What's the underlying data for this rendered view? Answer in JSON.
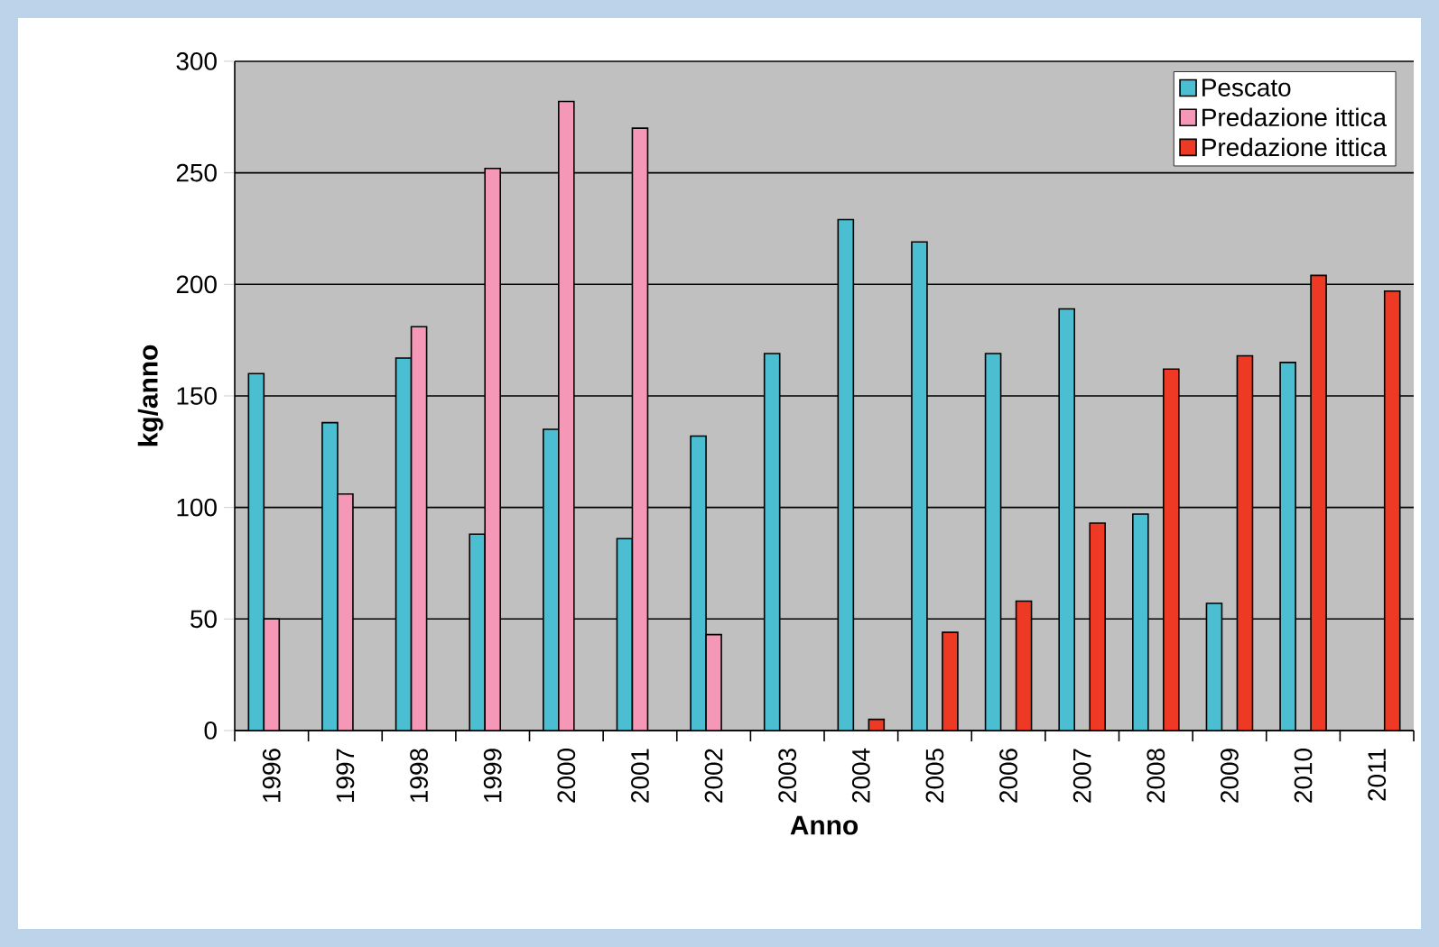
{
  "chart_data": {
    "type": "bar",
    "xlabel": "Anno",
    "ylabel": "kg/anno",
    "categories": [
      "1996",
      "1997",
      "1998",
      "1999",
      "2000",
      "2001",
      "2002",
      "2003",
      "2004",
      "2005",
      "2006",
      "2007",
      "2008",
      "2009",
      "2010",
      "2011"
    ],
    "series": [
      {
        "name": "Pescato",
        "color": "#4bbfd1",
        "values": [
          160,
          138,
          167,
          88,
          135,
          86,
          132,
          169,
          229,
          219,
          169,
          189,
          97,
          57,
          165,
          null
        ]
      },
      {
        "name": "Predazione ittica",
        "color": "#f598b8",
        "values": [
          50,
          106,
          181,
          252,
          282,
          270,
          43,
          null,
          null,
          null,
          null,
          null,
          null,
          null,
          null,
          null
        ]
      },
      {
        "name": "Predazione ittica",
        "color": "#ee3a24",
        "values": [
          null,
          null,
          null,
          null,
          null,
          null,
          null,
          null,
          5,
          44,
          58,
          93,
          162,
          168,
          204,
          197
        ]
      }
    ],
    "ylim": [
      0,
      300
    ],
    "yticks": [
      0,
      50,
      100,
      150,
      200,
      250,
      300
    ],
    "grid": "y",
    "legend": "top right"
  }
}
